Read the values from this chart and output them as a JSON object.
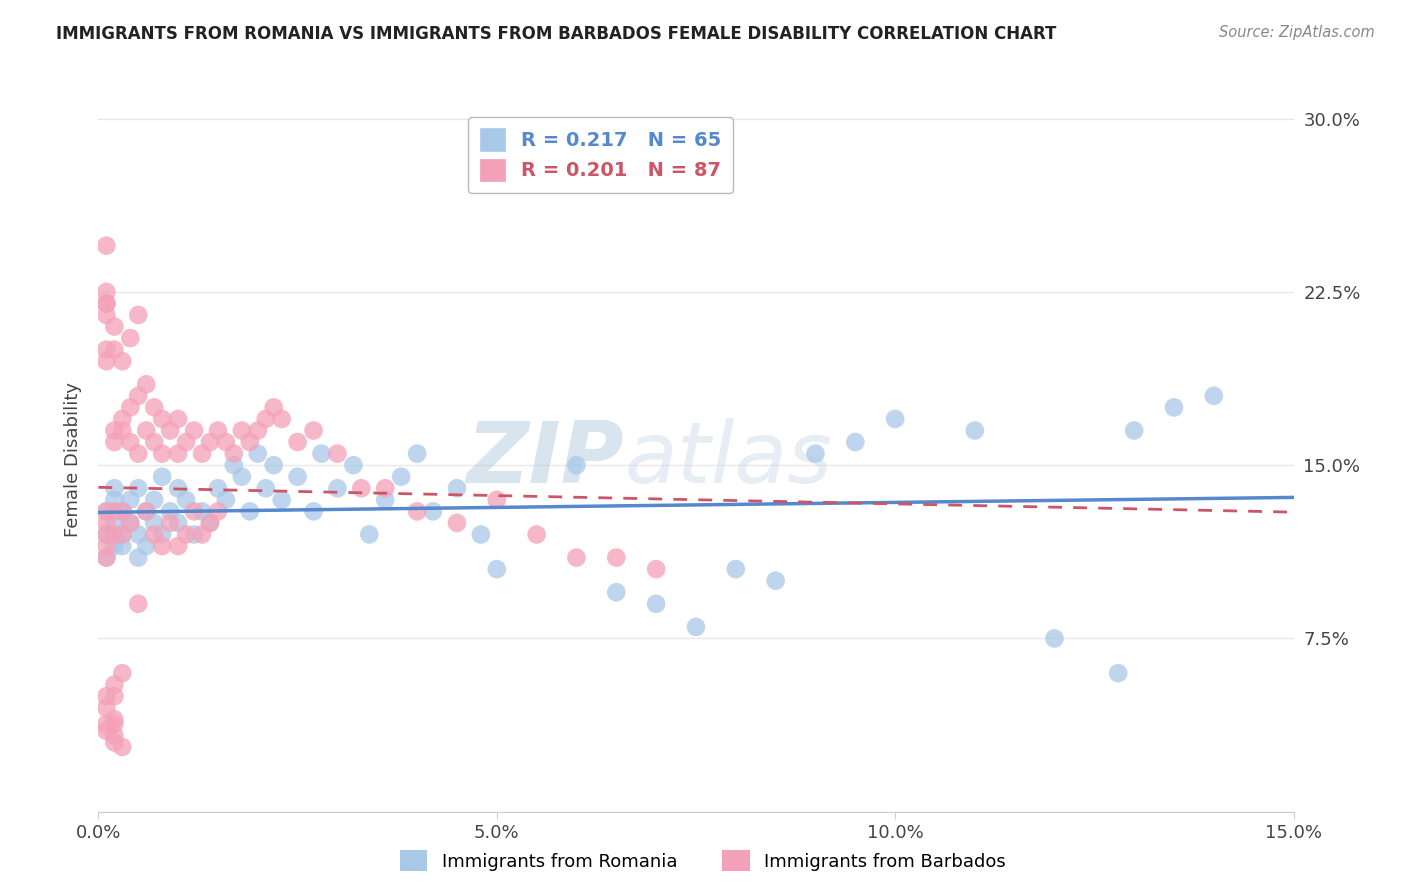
{
  "title": "IMMIGRANTS FROM ROMANIA VS IMMIGRANTS FROM BARBADOS FEMALE DISABILITY CORRELATION CHART",
  "source": "Source: ZipAtlas.com",
  "ylabel": "Female Disability",
  "legend_label1": "Immigrants from Romania",
  "legend_label2": "Immigrants from Barbados",
  "r1": 0.217,
  "n1": 65,
  "r2": 0.201,
  "n2": 87,
  "color_romania": "#a8c8e8",
  "color_barbados": "#f4a0b8",
  "trendline_romania": "#5588cc",
  "trendline_barbados": "#cc5566",
  "xlim": [
    0.0,
    0.15
  ],
  "ylim": [
    0.0,
    0.305
  ],
  "xticks": [
    0.0,
    0.05,
    0.1,
    0.15
  ],
  "yticks": [
    0.0,
    0.075,
    0.15,
    0.225,
    0.3
  ],
  "xticklabels": [
    "0.0%",
    "5.0%",
    "10.0%",
    "15.0%"
  ],
  "yticklabels": [
    "",
    "7.5%",
    "15.0%",
    "22.5%",
    "30.0%"
  ],
  "romania_x": [
    0.001,
    0.001,
    0.001,
    0.002,
    0.002,
    0.002,
    0.002,
    0.003,
    0.003,
    0.003,
    0.004,
    0.004,
    0.005,
    0.005,
    0.005,
    0.006,
    0.006,
    0.007,
    0.007,
    0.008,
    0.008,
    0.009,
    0.01,
    0.01,
    0.011,
    0.012,
    0.013,
    0.014,
    0.015,
    0.016,
    0.017,
    0.018,
    0.019,
    0.02,
    0.021,
    0.022,
    0.023,
    0.025,
    0.027,
    0.028,
    0.03,
    0.032,
    0.034,
    0.036,
    0.038,
    0.04,
    0.042,
    0.045,
    0.048,
    0.05,
    0.06,
    0.065,
    0.07,
    0.075,
    0.08,
    0.085,
    0.09,
    0.095,
    0.1,
    0.11,
    0.12,
    0.128,
    0.13,
    0.135,
    0.14
  ],
  "romania_y": [
    0.12,
    0.13,
    0.11,
    0.125,
    0.135,
    0.115,
    0.14,
    0.12,
    0.13,
    0.115,
    0.125,
    0.135,
    0.11,
    0.12,
    0.14,
    0.115,
    0.13,
    0.125,
    0.135,
    0.12,
    0.145,
    0.13,
    0.125,
    0.14,
    0.135,
    0.12,
    0.13,
    0.125,
    0.14,
    0.135,
    0.15,
    0.145,
    0.13,
    0.155,
    0.14,
    0.15,
    0.135,
    0.145,
    0.13,
    0.155,
    0.14,
    0.15,
    0.12,
    0.135,
    0.145,
    0.155,
    0.13,
    0.14,
    0.12,
    0.105,
    0.15,
    0.095,
    0.09,
    0.08,
    0.105,
    0.1,
    0.155,
    0.16,
    0.17,
    0.165,
    0.075,
    0.06,
    0.165,
    0.175,
    0.18
  ],
  "barbados_x": [
    0.001,
    0.001,
    0.001,
    0.001,
    0.001,
    0.001,
    0.001,
    0.001,
    0.001,
    0.001,
    0.001,
    0.001,
    0.002,
    0.002,
    0.002,
    0.002,
    0.002,
    0.002,
    0.002,
    0.002,
    0.002,
    0.003,
    0.003,
    0.003,
    0.003,
    0.003,
    0.003,
    0.004,
    0.004,
    0.004,
    0.004,
    0.005,
    0.005,
    0.005,
    0.005,
    0.006,
    0.006,
    0.006,
    0.007,
    0.007,
    0.007,
    0.008,
    0.008,
    0.008,
    0.009,
    0.009,
    0.01,
    0.01,
    0.01,
    0.011,
    0.011,
    0.012,
    0.012,
    0.013,
    0.013,
    0.014,
    0.014,
    0.015,
    0.015,
    0.016,
    0.017,
    0.018,
    0.019,
    0.02,
    0.021,
    0.022,
    0.023,
    0.025,
    0.027,
    0.03,
    0.033,
    0.036,
    0.04,
    0.045,
    0.05,
    0.055,
    0.06,
    0.065,
    0.07,
    0.001,
    0.001,
    0.002,
    0.002,
    0.002,
    0.003,
    0.001,
    0.001
  ],
  "barbados_y": [
    0.22,
    0.215,
    0.225,
    0.2,
    0.195,
    0.13,
    0.125,
    0.12,
    0.115,
    0.11,
    0.05,
    0.045,
    0.21,
    0.2,
    0.165,
    0.16,
    0.13,
    0.12,
    0.055,
    0.05,
    0.04,
    0.195,
    0.17,
    0.165,
    0.13,
    0.12,
    0.06,
    0.205,
    0.175,
    0.16,
    0.125,
    0.215,
    0.18,
    0.155,
    0.09,
    0.185,
    0.165,
    0.13,
    0.175,
    0.16,
    0.12,
    0.17,
    0.155,
    0.115,
    0.165,
    0.125,
    0.17,
    0.155,
    0.115,
    0.16,
    0.12,
    0.165,
    0.13,
    0.155,
    0.12,
    0.16,
    0.125,
    0.165,
    0.13,
    0.16,
    0.155,
    0.165,
    0.16,
    0.165,
    0.17,
    0.175,
    0.17,
    0.16,
    0.165,
    0.155,
    0.14,
    0.14,
    0.13,
    0.125,
    0.135,
    0.12,
    0.11,
    0.11,
    0.105,
    0.22,
    0.035,
    0.038,
    0.033,
    0.03,
    0.028,
    0.245,
    0.038
  ],
  "watermark_line1": "ZIP",
  "watermark_line2": "atlas",
  "background_color": "#ffffff",
  "grid_color": "#e8e8e8"
}
